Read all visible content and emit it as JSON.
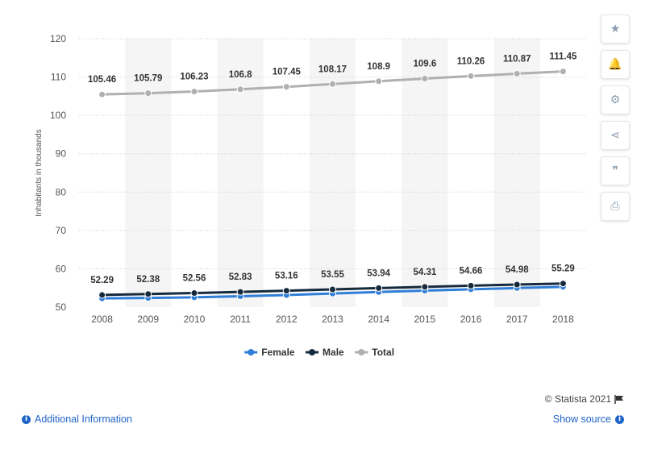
{
  "chart_data": {
    "type": "line",
    "categories": [
      "2008",
      "2009",
      "2010",
      "2011",
      "2012",
      "2013",
      "2014",
      "2015",
      "2016",
      "2017",
      "2018"
    ],
    "series": [
      {
        "name": "Female",
        "color": "#2f7ed8",
        "values": [
          52.29,
          52.38,
          52.56,
          52.83,
          53.16,
          53.55,
          53.94,
          54.31,
          54.66,
          54.98,
          55.29
        ],
        "show_labels": true
      },
      {
        "name": "Male",
        "color": "#162a3e",
        "values": [
          53.17,
          53.41,
          53.67,
          53.97,
          54.29,
          54.62,
          54.96,
          55.29,
          55.6,
          55.89,
          56.16
        ],
        "show_labels": false
      },
      {
        "name": "Total",
        "color": "#b0b0b0",
        "values": [
          105.46,
          105.79,
          106.23,
          106.8,
          107.45,
          108.17,
          108.9,
          109.6,
          110.26,
          110.87,
          111.45
        ],
        "show_labels": true
      }
    ],
    "ylabel": "Inhabitants in thousands",
    "xlabel": "",
    "yticks": [
      50,
      60,
      70,
      80,
      90,
      100,
      110,
      120
    ],
    "ylim": [
      50,
      120
    ],
    "grid": true,
    "legend_position": "bottom-center"
  },
  "toolbar": {
    "icons": [
      "star-icon",
      "bell-icon",
      "gear-icon",
      "share-icon",
      "quote-icon",
      "print-icon"
    ],
    "glyphs": [
      "★",
      "🔔",
      "⚙",
      "⋖",
      "❞",
      "⎙"
    ]
  },
  "footer": {
    "credit": "© Statista 2021",
    "additional_info": "Additional Information",
    "show_source": "Show source"
  }
}
